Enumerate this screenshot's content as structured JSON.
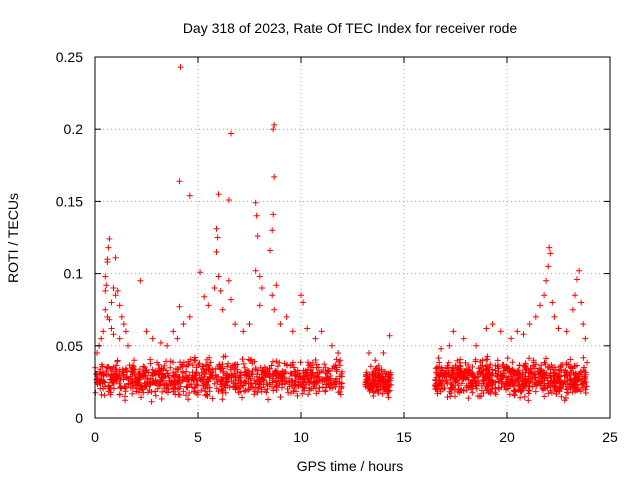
{
  "chart_data": {
    "type": "scatter",
    "title": "Day 318 of 2023, Rate Of TEC Index for receiver rode",
    "xlabel": "GPS time / hours",
    "ylabel": "ROTI / TECUs",
    "xlim": [
      0,
      25
    ],
    "ylim": [
      0,
      0.25
    ],
    "x_ticks": [
      0,
      5,
      10,
      15,
      20,
      25
    ],
    "y_ticks": [
      0,
      0.05,
      0.1,
      0.15,
      0.2,
      0.25
    ],
    "x_tick_labels": [
      "0",
      "5",
      "10",
      "15",
      "20",
      "25"
    ],
    "y_tick_labels": [
      "0",
      "0.05",
      "0.1",
      "0.15",
      "0.2",
      "0.25"
    ],
    "grid": true,
    "legend": "none",
    "marker": "plus",
    "color": "#ff0000",
    "series": [
      {
        "points": [
          [
            0.1,
            0.045
          ],
          [
            0.2,
            0.05
          ],
          [
            0.3,
            0.055
          ],
          [
            0.4,
            0.06
          ],
          [
            0.5,
            0.088
          ],
          [
            0.5,
            0.098
          ],
          [
            0.55,
            0.092
          ],
          [
            0.6,
            0.11
          ],
          [
            0.65,
            0.118
          ],
          [
            0.7,
            0.124
          ],
          [
            0.6,
            0.108
          ],
          [
            0.5,
            0.075
          ],
          [
            0.6,
            0.07
          ],
          [
            0.7,
            0.068
          ],
          [
            0.8,
            0.08
          ],
          [
            0.9,
            0.09
          ],
          [
            1.0,
            0.085
          ],
          [
            1.1,
            0.088
          ],
          [
            1.2,
            0.078
          ],
          [
            1.3,
            0.07
          ],
          [
            1.4,
            0.065
          ],
          [
            1.0,
            0.111
          ],
          [
            0.8,
            0.062
          ],
          [
            0.9,
            0.058
          ],
          [
            1.5,
            0.06
          ],
          [
            1.6,
            0.05
          ],
          [
            1.2,
            0.055
          ],
          [
            2.2,
            0.095
          ],
          [
            2.5,
            0.06
          ],
          [
            2.8,
            0.055
          ],
          [
            3.2,
            0.052
          ],
          [
            3.5,
            0.05
          ],
          [
            3.8,
            0.06
          ],
          [
            4.0,
            0.055
          ],
          [
            4.1,
            0.077
          ],
          [
            4.3,
            0.065
          ],
          [
            4.6,
            0.07
          ],
          [
            4.1,
            0.164
          ],
          [
            4.15,
            0.243
          ],
          [
            4.6,
            0.154
          ],
          [
            5.1,
            0.101
          ],
          [
            5.3,
            0.084
          ],
          [
            5.5,
            0.078
          ],
          [
            5.8,
            0.09
          ],
          [
            5.9,
            0.115
          ],
          [
            5.95,
            0.125
          ],
          [
            6.0,
            0.155
          ],
          [
            5.9,
            0.131
          ],
          [
            6.0,
            0.098
          ],
          [
            6.1,
            0.088
          ],
          [
            6.2,
            0.075
          ],
          [
            6.5,
            0.151
          ],
          [
            6.6,
            0.197
          ],
          [
            6.5,
            0.095
          ],
          [
            6.6,
            0.082
          ],
          [
            6.8,
            0.065
          ],
          [
            7.2,
            0.06
          ],
          [
            7.5,
            0.065
          ],
          [
            7.8,
            0.149
          ],
          [
            7.85,
            0.14
          ],
          [
            7.9,
            0.126
          ],
          [
            7.8,
            0.102
          ],
          [
            8.0,
            0.098
          ],
          [
            8.1,
            0.09
          ],
          [
            8.0,
            0.078
          ],
          [
            8.5,
            0.116
          ],
          [
            8.6,
            0.13
          ],
          [
            8.65,
            0.141
          ],
          [
            8.7,
            0.167
          ],
          [
            8.65,
            0.2
          ],
          [
            8.7,
            0.203
          ],
          [
            8.6,
            0.085
          ],
          [
            8.8,
            0.092
          ],
          [
            8.7,
            0.075
          ],
          [
            9.0,
            0.065
          ],
          [
            9.3,
            0.07
          ],
          [
            9.6,
            0.06
          ],
          [
            10.0,
            0.085
          ],
          [
            10.1,
            0.08
          ],
          [
            10.3,
            0.062
          ],
          [
            10.7,
            0.055
          ],
          [
            11.0,
            0.06
          ],
          [
            11.5,
            0.05
          ],
          [
            11.8,
            0.045
          ],
          [
            11.9,
            0.04
          ],
          [
            13.3,
            0.045
          ],
          [
            13.6,
            0.04
          ],
          [
            14.0,
            0.045
          ],
          [
            14.3,
            0.057
          ],
          [
            16.8,
            0.048
          ],
          [
            17.2,
            0.05
          ],
          [
            17.4,
            0.06
          ],
          [
            17.9,
            0.055
          ],
          [
            18.5,
            0.05
          ],
          [
            19.0,
            0.062
          ],
          [
            19.3,
            0.065
          ],
          [
            19.7,
            0.06
          ],
          [
            20.2,
            0.055
          ],
          [
            20.5,
            0.06
          ],
          [
            20.8,
            0.058
          ],
          [
            21.1,
            0.065
          ],
          [
            21.4,
            0.07
          ],
          [
            21.6,
            0.078
          ],
          [
            21.8,
            0.085
          ],
          [
            21.9,
            0.095
          ],
          [
            22.0,
            0.105
          ],
          [
            22.05,
            0.118
          ],
          [
            22.1,
            0.114
          ],
          [
            22.2,
            0.08
          ],
          [
            22.3,
            0.07
          ],
          [
            22.5,
            0.062
          ],
          [
            22.9,
            0.06
          ],
          [
            23.2,
            0.075
          ],
          [
            23.3,
            0.085
          ],
          [
            23.4,
            0.096
          ],
          [
            23.5,
            0.102
          ],
          [
            23.6,
            0.08
          ],
          [
            23.7,
            0.065
          ],
          [
            23.8,
            0.055
          ]
        ],
        "dense_bands": [
          {
            "x": [
              0,
              12.0
            ],
            "y": [
              0.01,
              0.045
            ],
            "count": 900
          },
          {
            "x": [
              13.1,
              14.4
            ],
            "y": [
              0.01,
              0.04
            ],
            "count": 140
          },
          {
            "x": [
              16.5,
              23.9
            ],
            "y": [
              0.01,
              0.045
            ],
            "count": 700
          }
        ]
      }
    ]
  }
}
